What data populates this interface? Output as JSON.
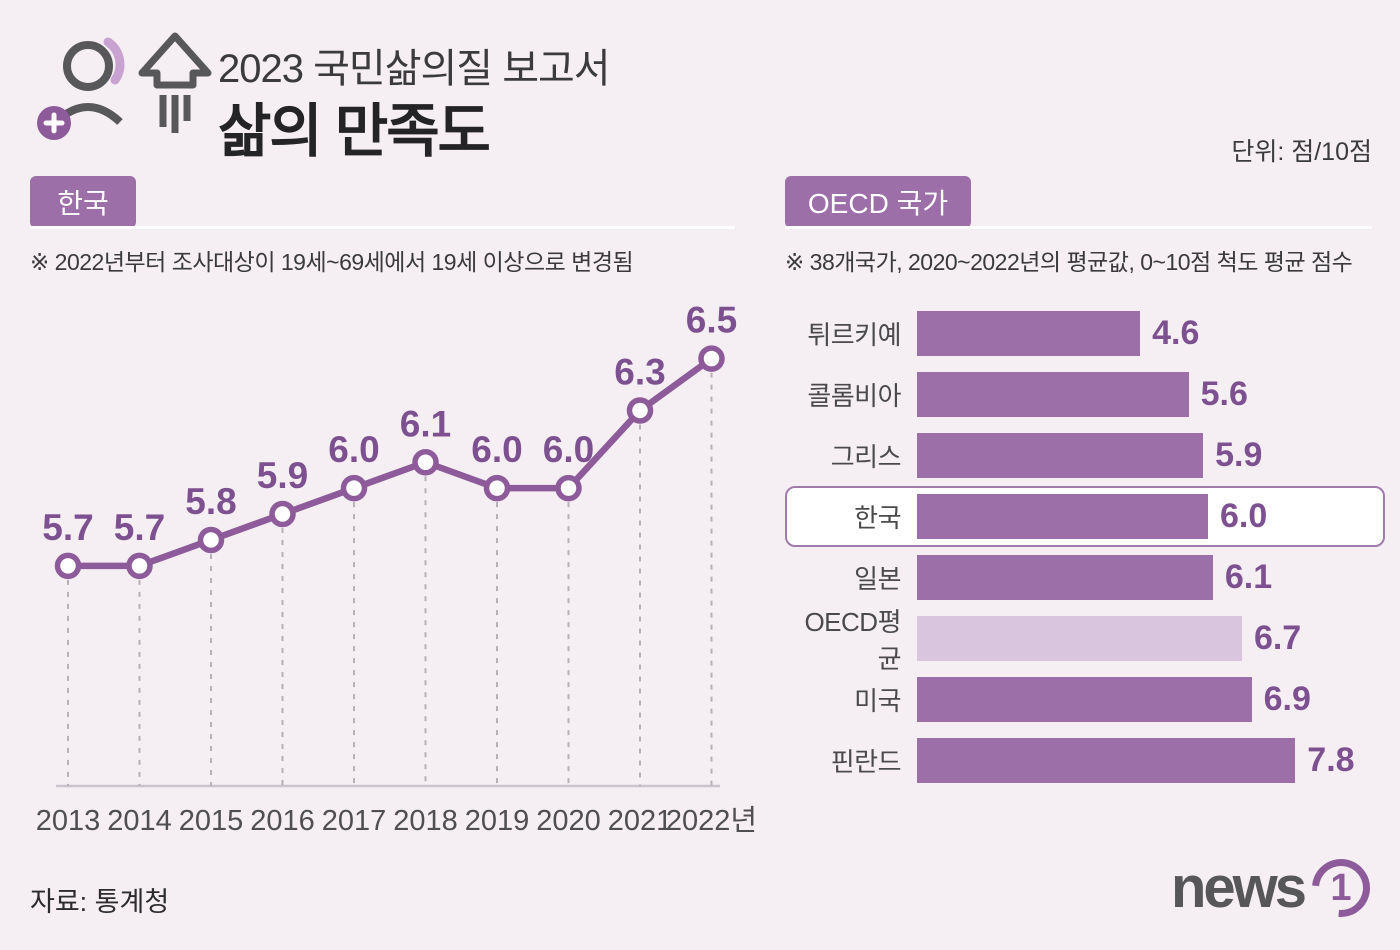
{
  "header": {
    "title_line1": "2023 국민삶의질 보고서",
    "title_line2": "삶의 만족도",
    "unit": "단위: 점/10점"
  },
  "korea_section": {
    "badge": "한국",
    "note": "※ 2022년부터 조사대상이 19세~69세에서 19세 이상으로 변경됨"
  },
  "oecd_section": {
    "badge": "OECD 국가",
    "note": "※ 38개국가, 2020~2022년의 평균값, 0~10점 척도 평균 점수"
  },
  "footer": {
    "source": "자료: 통계청",
    "logo_text": "news",
    "logo_digit": "1"
  },
  "colors": {
    "accent": "#9c6fa8",
    "accent_line": "#8e5b9a",
    "accent_light": "#d9c6de",
    "value_text": "#7d5190",
    "background": "#f5eff4"
  },
  "chart_data": [
    {
      "type": "line",
      "title": "한국 삶의 만족도",
      "categories": [
        "2013",
        "2014",
        "2015",
        "2016",
        "2017",
        "2018",
        "2019",
        "2020",
        "2021",
        "2022년"
      ],
      "values": [
        5.7,
        5.7,
        5.8,
        5.9,
        6.0,
        6.1,
        6.0,
        6.0,
        6.3,
        6.5
      ],
      "ylim": [
        4.85,
        6.75
      ],
      "grid": "dashed vertical drop lines to baseline",
      "legend": "none"
    },
    {
      "type": "bar",
      "title": "OECD 국가 삶의 만족도",
      "orientation": "horizontal",
      "categories": [
        "튀르키예",
        "콜롬비아",
        "그리스",
        "한국",
        "일본",
        "OECD평균",
        "미국",
        "핀란드"
      ],
      "values": [
        4.6,
        5.6,
        5.9,
        6.0,
        6.1,
        6.7,
        6.9,
        7.8
      ],
      "xlim": [
        0,
        8.3
      ],
      "highlight_category": "한국",
      "muted_category": "OECD평균",
      "legend": "none"
    }
  ]
}
